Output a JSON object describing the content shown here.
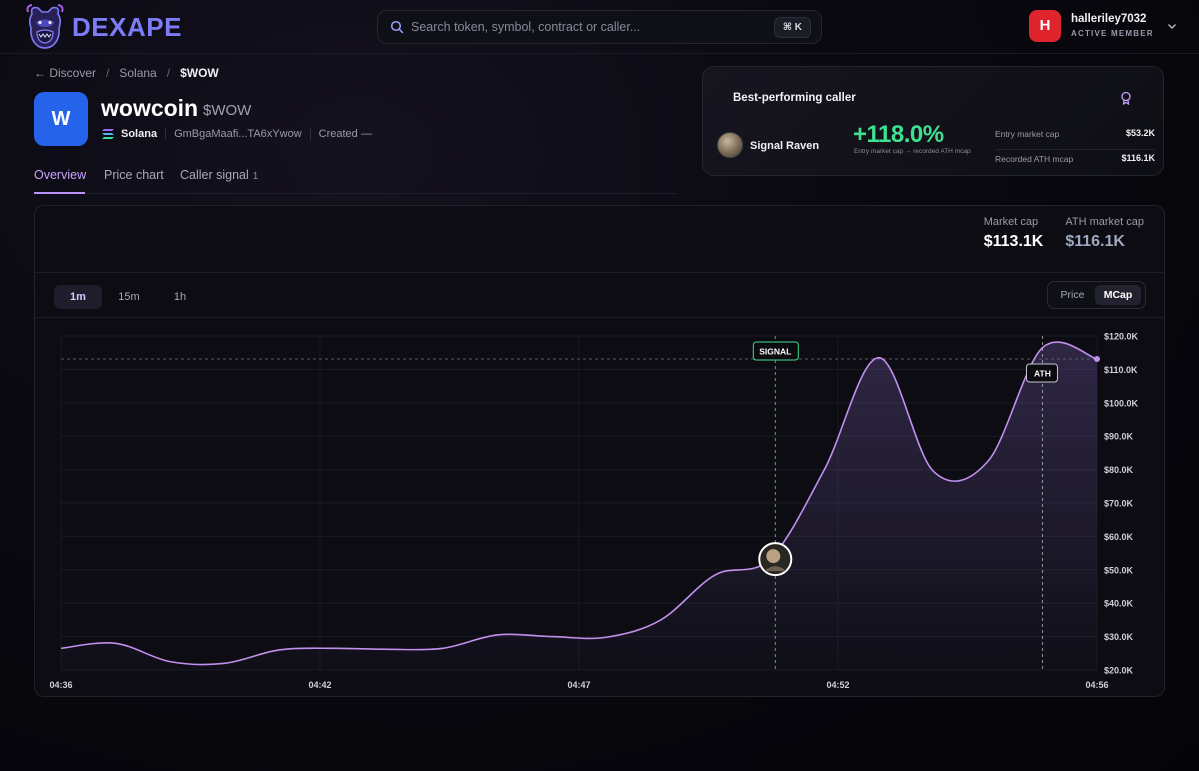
{
  "app": {
    "name": "DEXAPE"
  },
  "search": {
    "placeholder": "Search token, symbol, contract or caller...",
    "shortcut": "⌘ K"
  },
  "user": {
    "initial": "H",
    "name": "halleriley7032",
    "role": "ACTIVE MEMBER"
  },
  "breadcrumb": {
    "back": "← Discover",
    "chain": "Solana",
    "current": "$WOW",
    "sep1": "/",
    "sep2": "/"
  },
  "token": {
    "logo_letter": "W",
    "name": "wowcoin",
    "symbol": "$WOW",
    "chain": "Solana",
    "contract": "GmBgaMaafi...TA6xYwow",
    "created": "Created —"
  },
  "tabs": [
    {
      "label": "Overview"
    },
    {
      "label": "Price chart"
    },
    {
      "label": "Caller signal",
      "count": "1"
    }
  ],
  "best_caller": {
    "title": "Best-performing caller",
    "name": "Signal Raven",
    "gain": "+118.0%",
    "gain_caption": "Entry market cap → recorded ATH mcap",
    "entry_label": "Entry market cap",
    "entry_value": "$53.2K",
    "ath_label": "Recorded ATH mcap",
    "ath_value": "$116.1K"
  },
  "chart_panel": {
    "market_cap_label": "Market cap",
    "market_cap_value": "$113.1K",
    "ath_label": "ATH market cap",
    "ath_value": "$116.1K",
    "timeframes": [
      "1m",
      "15m",
      "1h"
    ],
    "active_timeframe": "1m",
    "modes": [
      "Price",
      "MCap"
    ],
    "active_mode": "MCap"
  },
  "colors": {
    "accent": "#b891ff",
    "gain": "#3ee090",
    "line": "#c190ef",
    "signal": "#3ee090"
  },
  "chart_data": {
    "type": "area",
    "x_ticks": [
      "04:36",
      "04:42",
      "04:47",
      "04:52",
      "04:56"
    ],
    "y_ticks": [
      "$120.0K",
      "$110.0K",
      "$100.0K",
      "$90.0K",
      "$80.0K",
      "$70.0K",
      "$60.0K",
      "$50.0K",
      "$40.0K",
      "$30.0K",
      "$20.0K"
    ],
    "ylim": [
      20000,
      120000
    ],
    "series": [
      {
        "points": [
          [
            0,
            26500
          ],
          [
            1,
            28000
          ],
          [
            2,
            22500
          ],
          [
            3,
            22000
          ],
          [
            4,
            26000
          ],
          [
            5,
            26500
          ],
          [
            6,
            26200
          ],
          [
            7,
            26500
          ],
          [
            8,
            30500
          ],
          [
            9,
            30000
          ],
          [
            10,
            29800
          ],
          [
            11,
            35000
          ],
          [
            12,
            48500
          ],
          [
            13,
            53200
          ],
          [
            14,
            80000
          ],
          [
            15,
            113500
          ],
          [
            16,
            79500
          ],
          [
            17,
            82500
          ],
          [
            18,
            116500
          ],
          [
            19,
            113100
          ]
        ]
      }
    ],
    "x_range": [
      0,
      19
    ],
    "reference_line": 113100,
    "annotations": [
      {
        "label": "SIGNAL",
        "x": 13.1
      },
      {
        "label": "ATH",
        "x": 18.0
      }
    ]
  }
}
